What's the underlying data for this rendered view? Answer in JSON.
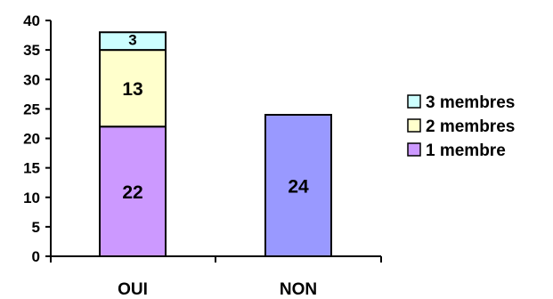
{
  "chart_data": {
    "type": "bar",
    "stacked": true,
    "categories": [
      "OUI",
      "NON"
    ],
    "series": [
      {
        "name": "1 membre",
        "values": [
          22,
          24
        ],
        "colors": [
          "#cc99ff",
          "#9999ff"
        ]
      },
      {
        "name": "2 membres",
        "values": [
          13,
          null
        ],
        "colors": [
          "#ffffcc",
          "#ffffcc"
        ]
      },
      {
        "name": "3 membres",
        "values": [
          3,
          null
        ],
        "colors": [
          "#ccffff",
          "#ccffff"
        ]
      }
    ],
    "data_labels": true,
    "ylim": [
      0,
      40
    ],
    "yticks": [
      0,
      5,
      10,
      15,
      20,
      25,
      30,
      35,
      40
    ],
    "grid": false,
    "legend_position": "right",
    "legend": [
      {
        "label": "3 membres",
        "color": "#ccffff"
      },
      {
        "label": "2 membres",
        "color": "#ffffcc"
      },
      {
        "label": "1 membre",
        "color": "#cc99ff"
      }
    ]
  }
}
